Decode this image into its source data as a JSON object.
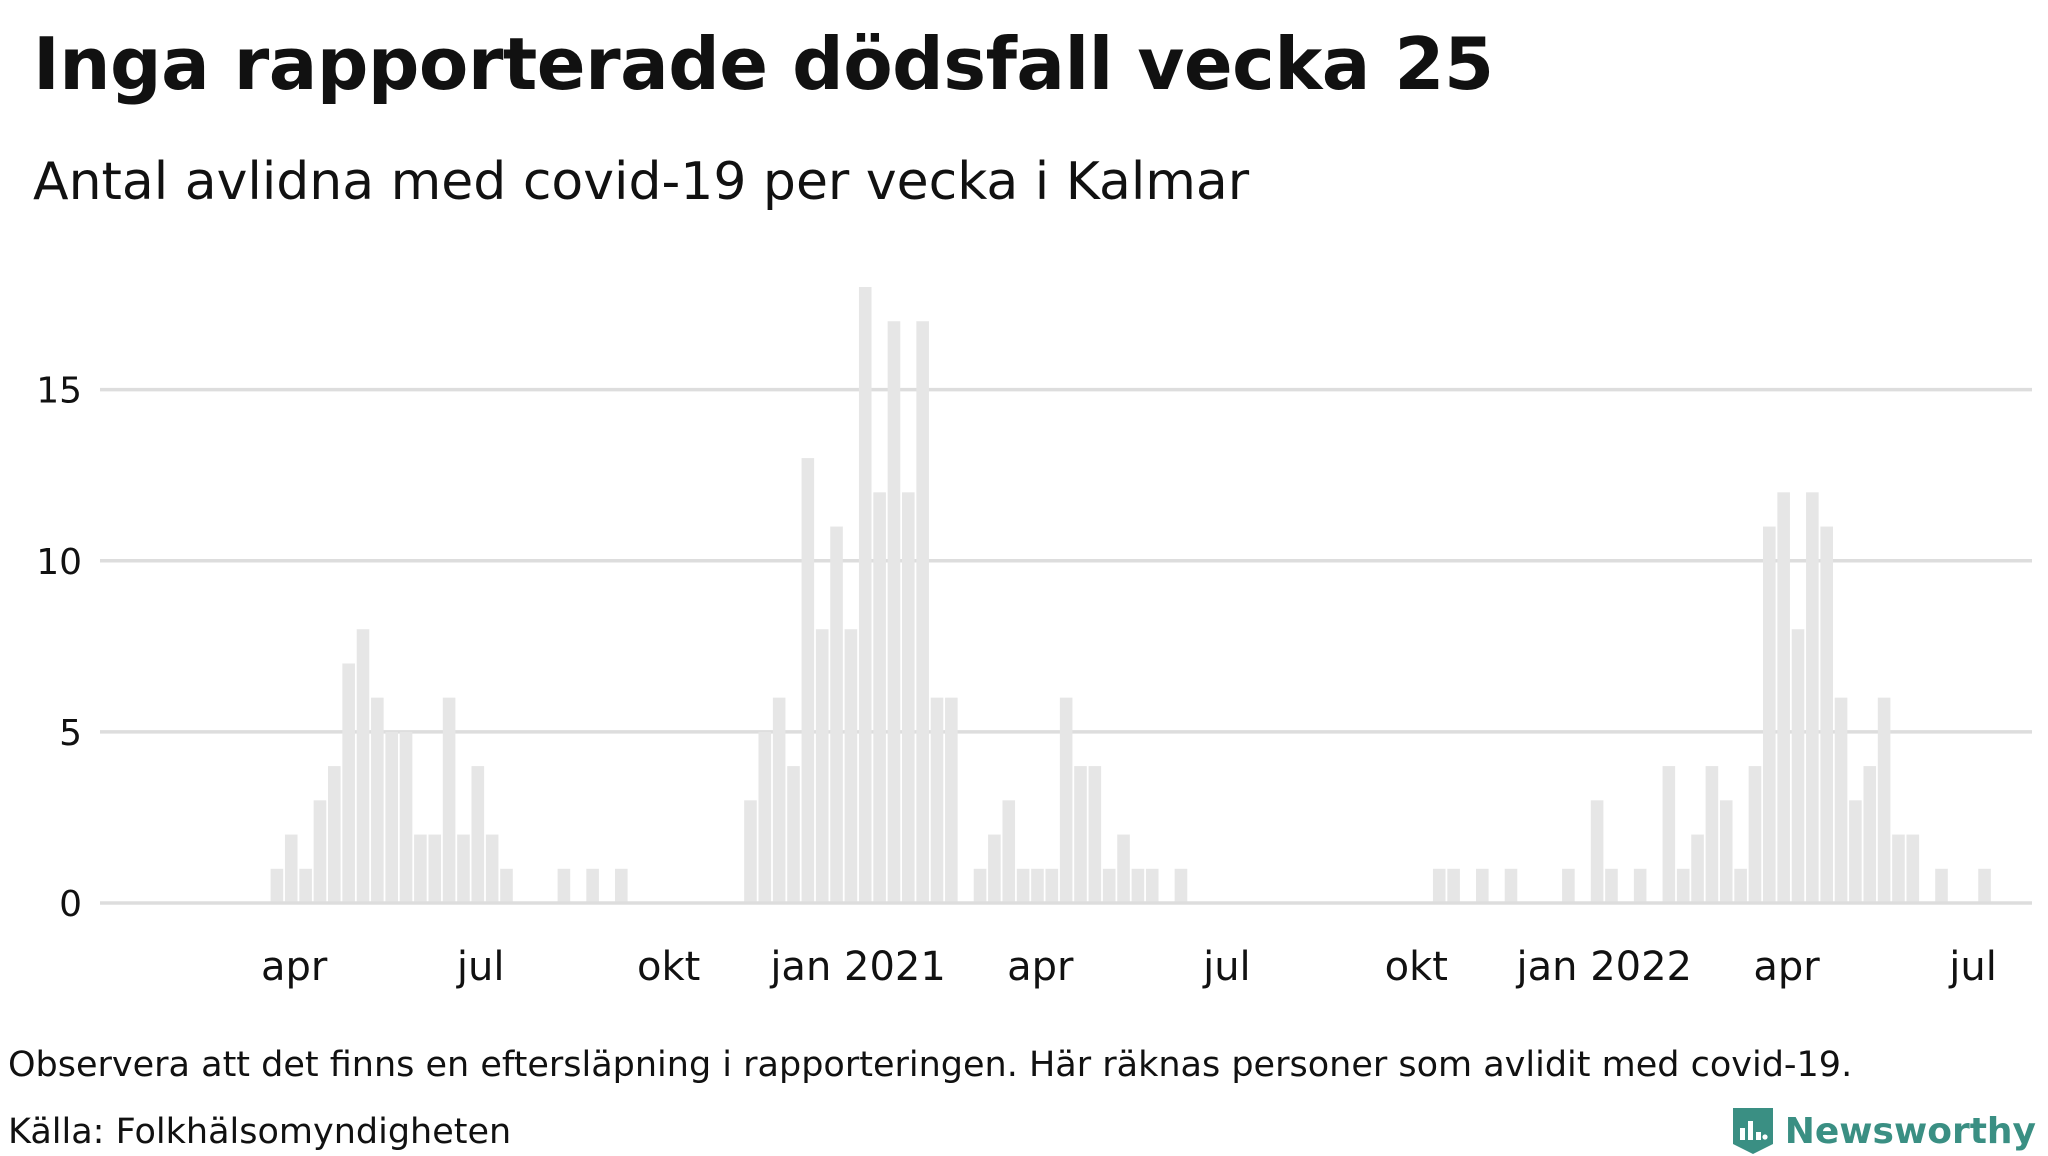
{
  "title": "Inga rapporterade dödsfall vecka 25",
  "subtitle": "Antal avlidna med covid-19 per vecka i Kalmar",
  "note": "Observera att det finns en eftersläpning i rapporteringen. Här räknas personer som avlidit med covid-19.",
  "source": "Källa: Folkhälsomyndigheten",
  "brand": "Newsworthy",
  "colors": {
    "bar": "#e6e6e6",
    "grid": "#dddddd",
    "text": "#111111",
    "brand": "#3a8f83"
  },
  "chart_data": {
    "type": "bar",
    "title": "Inga rapporterade dödsfall vecka 25",
    "subtitle": "Antal avlidna med covid-19 per vecka i Kalmar",
    "xlabel": "",
    "ylabel": "",
    "ylim": [
      0,
      18
    ],
    "yticks": [
      0,
      5,
      10,
      15
    ],
    "grid": true,
    "first_week": "2020 vecka 1",
    "x_ticks": [
      {
        "label": "apr",
        "week": 13.2
      },
      {
        "label": "jul",
        "week": 26.2
      },
      {
        "label": "okt",
        "week": 39.3
      },
      {
        "label": "jan 2021",
        "week": 52.5
      },
      {
        "label": "apr",
        "week": 65.2
      },
      {
        "label": "jul",
        "week": 78.2
      },
      {
        "label": "okt",
        "week": 91.4
      },
      {
        "label": "jan 2022",
        "week": 104.5
      },
      {
        "label": "apr",
        "week": 117.2
      },
      {
        "label": "jul",
        "week": 130.2
      }
    ],
    "values": [
      0,
      0,
      0,
      0,
      0,
      0,
      0,
      0,
      0,
      0,
      0,
      0,
      1,
      2,
      1,
      3,
      4,
      7,
      8,
      6,
      5,
      5,
      2,
      2,
      6,
      2,
      4,
      2,
      1,
      0,
      0,
      0,
      1,
      0,
      1,
      0,
      1,
      0,
      0,
      0,
      0,
      0,
      0,
      0,
      0,
      3,
      5,
      6,
      4,
      13,
      8,
      11,
      8,
      18,
      12,
      17,
      12,
      17,
      6,
      6,
      0,
      1,
      2,
      3,
      1,
      1,
      1,
      6,
      4,
      4,
      1,
      2,
      1,
      1,
      0,
      1,
      0,
      0,
      0,
      0,
      0,
      0,
      0,
      0,
      0,
      0,
      0,
      0,
      0,
      0,
      0,
      0,
      0,
      1,
      1,
      0,
      1,
      0,
      1,
      0,
      0,
      0,
      1,
      0,
      3,
      1,
      0,
      1,
      0,
      4,
      1,
      2,
      4,
      3,
      1,
      4,
      11,
      12,
      8,
      12,
      11,
      6,
      3,
      4,
      6,
      2,
      2,
      0,
      1,
      0,
      0,
      1,
      0,
      0,
      0,
      0,
      0,
      0,
      0,
      0,
      0,
      0
    ]
  }
}
